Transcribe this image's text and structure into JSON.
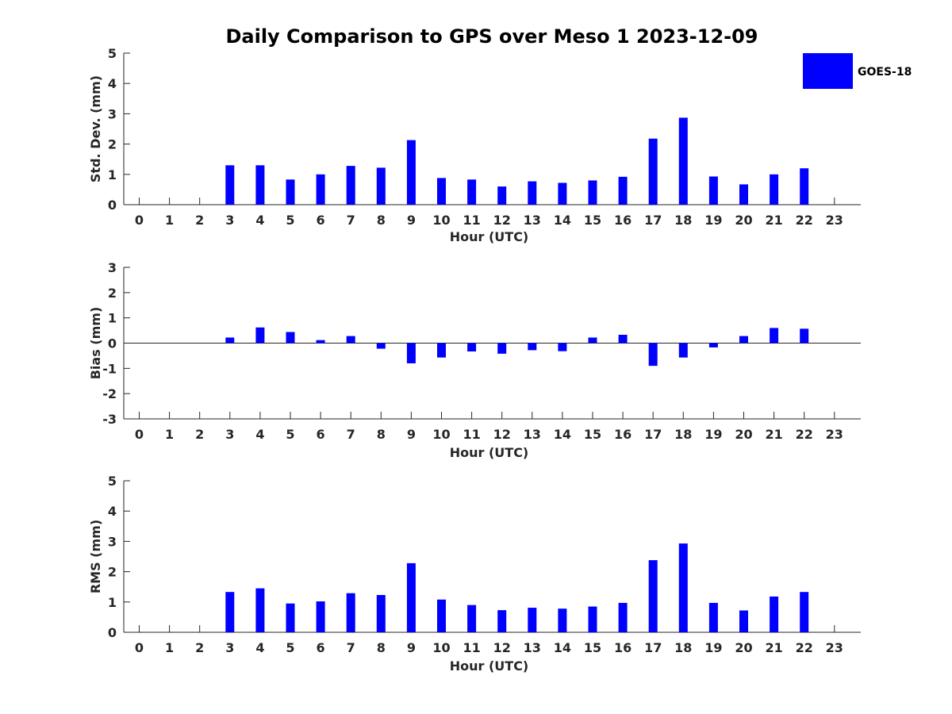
{
  "title": "Daily Comparison to GPS over Meso 1 2023-12-09",
  "colors": {
    "bar": "#0000ff",
    "axis": "#262626",
    "background": "#ffffff"
  },
  "legend": {
    "label": "GOES-18",
    "placement": "top-right"
  },
  "chart_data": [
    {
      "type": "bar",
      "xlabel": "Hour (UTC)",
      "ylabel": "Std. Dev. (mm)",
      "ylim": [
        0,
        5
      ],
      "yticks": [
        0,
        1,
        2,
        3,
        4,
        5
      ],
      "grid": false,
      "categories": [
        0,
        1,
        2,
        3,
        4,
        5,
        6,
        7,
        8,
        9,
        10,
        11,
        12,
        13,
        14,
        15,
        16,
        17,
        18,
        19,
        20,
        21,
        22,
        23
      ],
      "series": [
        {
          "name": "GOES-18",
          "values": [
            null,
            null,
            null,
            1.3,
            1.3,
            0.83,
            1.0,
            1.28,
            1.22,
            2.13,
            0.88,
            0.83,
            0.6,
            0.77,
            0.72,
            0.8,
            0.92,
            2.18,
            2.87,
            0.93,
            0.67,
            1.0,
            1.2,
            null
          ]
        }
      ]
    },
    {
      "type": "bar",
      "xlabel": "Hour (UTC)",
      "ylabel": "Bias (mm)",
      "ylim": [
        -3,
        3
      ],
      "yticks": [
        -3,
        -2,
        -1,
        0,
        1,
        2,
        3
      ],
      "grid": false,
      "categories": [
        0,
        1,
        2,
        3,
        4,
        5,
        6,
        7,
        8,
        9,
        10,
        11,
        12,
        13,
        14,
        15,
        16,
        17,
        18,
        19,
        20,
        21,
        22,
        23
      ],
      "series": [
        {
          "name": "GOES-18",
          "values": [
            null,
            null,
            null,
            0.22,
            0.62,
            0.44,
            0.12,
            0.28,
            -0.22,
            -0.8,
            -0.57,
            -0.33,
            -0.42,
            -0.28,
            -0.32,
            0.22,
            0.33,
            -0.9,
            -0.57,
            -0.17,
            0.28,
            0.6,
            0.57,
            null
          ]
        }
      ]
    },
    {
      "type": "bar",
      "xlabel": "Hour (UTC)",
      "ylabel": "RMS (mm)",
      "ylim": [
        0,
        5
      ],
      "yticks": [
        0,
        1,
        2,
        3,
        4,
        5
      ],
      "grid": false,
      "categories": [
        0,
        1,
        2,
        3,
        4,
        5,
        6,
        7,
        8,
        9,
        10,
        11,
        12,
        13,
        14,
        15,
        16,
        17,
        18,
        19,
        20,
        21,
        22,
        23
      ],
      "series": [
        {
          "name": "GOES-18",
          "values": [
            null,
            null,
            null,
            1.33,
            1.45,
            0.95,
            1.02,
            1.29,
            1.23,
            2.28,
            1.08,
            0.9,
            0.73,
            0.81,
            0.78,
            0.85,
            0.97,
            2.38,
            2.93,
            0.97,
            0.72,
            1.18,
            1.33,
            null
          ]
        }
      ]
    }
  ]
}
